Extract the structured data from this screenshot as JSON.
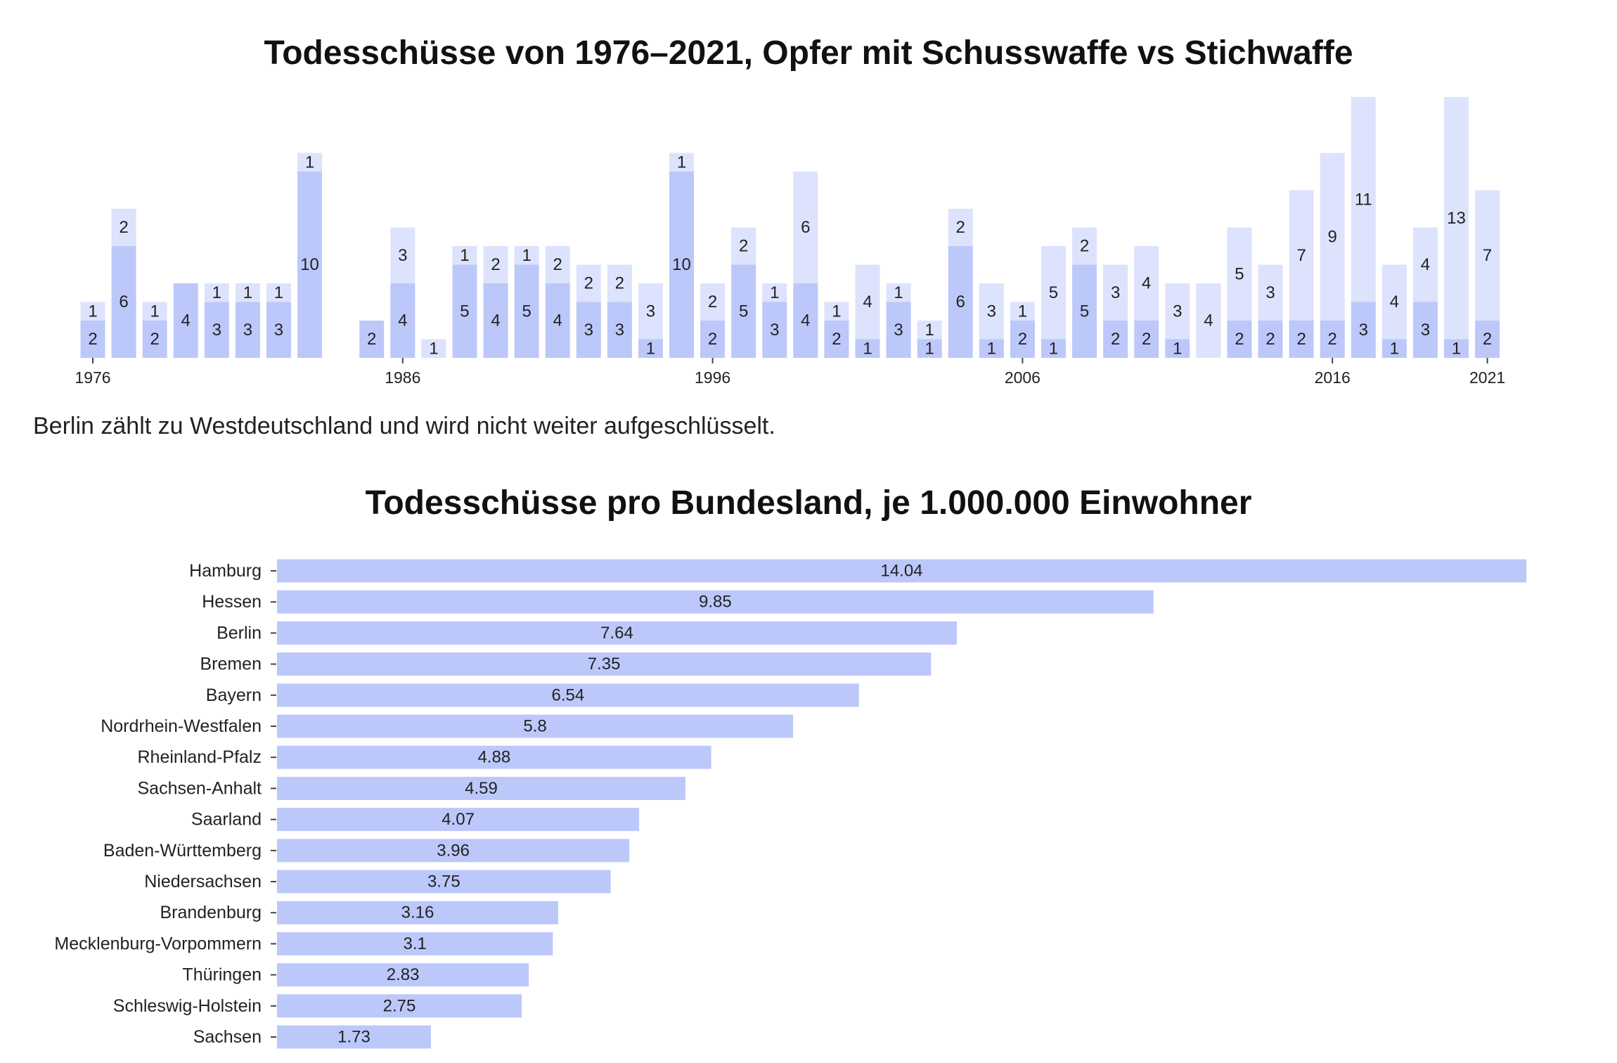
{
  "chart_data": [
    {
      "type": "bar",
      "stacked": true,
      "title": "Todesschüsse von 1976–2021, Opfer mit Schusswaffe vs Stichwaffe",
      "note": "Berlin zählt zu Westdeutschland und wird nicht weiter aufgeschlüsselt.",
      "x": [
        1976,
        1977,
        1978,
        1979,
        1980,
        1981,
        1982,
        1983,
        1984,
        1985,
        1986,
        1987,
        1988,
        1989,
        1990,
        1991,
        1992,
        1993,
        1994,
        1995,
        1996,
        1997,
        1998,
        1999,
        2000,
        2001,
        2002,
        2003,
        2004,
        2005,
        2006,
        2007,
        2008,
        2009,
        2010,
        2011,
        2012,
        2013,
        2014,
        2015,
        2016,
        2017,
        2018,
        2019,
        2020,
        2021
      ],
      "x_ticks": [
        "1976",
        "1986",
        "1996",
        "2006",
        "2016",
        "2021"
      ],
      "series": [
        {
          "values": [
            2,
            6,
            2,
            4,
            3,
            3,
            3,
            10,
            null,
            2,
            4,
            null,
            5,
            4,
            5,
            4,
            3,
            3,
            1,
            10,
            2,
            5,
            3,
            4,
            2,
            1,
            3,
            1,
            6,
            1,
            2,
            1,
            5,
            2,
            2,
            1,
            null,
            2,
            2,
            2,
            2,
            3,
            1,
            3,
            1,
            2
          ]
        },
        {
          "values": [
            1,
            2,
            1,
            null,
            1,
            1,
            1,
            1,
            null,
            null,
            3,
            1,
            1,
            2,
            1,
            2,
            2,
            2,
            3,
            1,
            2,
            2,
            1,
            6,
            1,
            4,
            1,
            1,
            2,
            3,
            1,
            5,
            2,
            3,
            4,
            3,
            4,
            5,
            3,
            7,
            9,
            11,
            4,
            4,
            13,
            7
          ]
        }
      ],
      "colors": {
        "primary": "#bcc8fa",
        "secondary": "#dde3fc"
      }
    },
    {
      "type": "bar",
      "orientation": "horizontal",
      "title": "Todesschüsse pro Bundesland, je 1.000.000 Einwohner",
      "categories": [
        "Hamburg",
        "Hessen",
        "Berlin",
        "Bremen",
        "Bayern",
        "Nordrhein-Westfalen",
        "Rheinland-Pfalz",
        "Sachsen-Anhalt",
        "Saarland",
        "Baden-Württemberg",
        "Niedersachsen",
        "Brandenburg",
        "Mecklenburg-Vorpommern",
        "Thüringen",
        "Schleswig-Holstein",
        "Sachsen"
      ],
      "values": [
        14.04,
        9.85,
        7.64,
        7.35,
        6.54,
        5.8,
        4.88,
        4.59,
        4.07,
        3.96,
        3.75,
        3.16,
        3.1,
        2.83,
        2.75,
        1.73
      ],
      "colors": {
        "bar": "#bcc8fa"
      }
    }
  ]
}
